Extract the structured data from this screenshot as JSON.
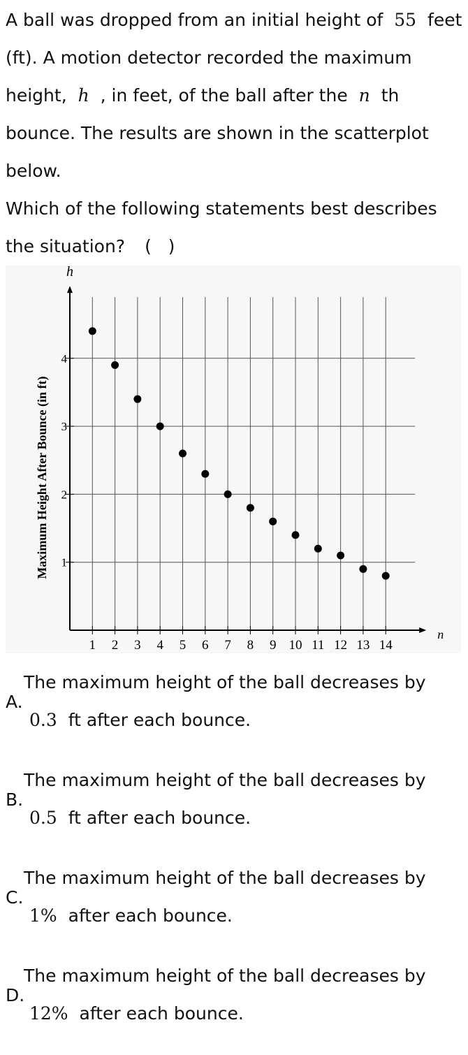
{
  "question": {
    "stem": [
      "A ball was dropped from an initial height of ",
      "55",
      " feet (ft). A motion detector recorded the maximum height, ",
      "h",
      " , in feet, of the ball after the ",
      "n",
      " th bounce. The results are shown in the scatterplot below."
    ],
    "prompt": "Which of the following statements best describes the situation?",
    "blank": "(   )"
  },
  "chart_data": {
    "type": "scatter",
    "x_label": "n",
    "y_label": "h",
    "y_title": "Maximum Height After Bounce (in ft)",
    "x": [
      1,
      2,
      3,
      4,
      5,
      6,
      7,
      8,
      9,
      10,
      11,
      12,
      13,
      14
    ],
    "values": [
      4.4,
      3.9,
      3.4,
      3.0,
      2.6,
      2.3,
      2.0,
      1.8,
      1.6,
      1.4,
      1.2,
      1.1,
      0.9,
      0.8
    ],
    "color": "#000000",
    "xlim": [
      0,
      15.3
    ],
    "ylim": [
      0,
      4.9
    ],
    "xticks": [
      1,
      2,
      3,
      4,
      5,
      6,
      7,
      8,
      9,
      10,
      11,
      12,
      13,
      14
    ],
    "yticks": [
      1,
      2,
      3,
      4
    ],
    "grid": true
  },
  "options": [
    {
      "label": "A.",
      "parts": [
        "The maximum height of the ball decreases by",
        "0.3",
        " ft after each bounce."
      ]
    },
    {
      "label": "B.",
      "parts": [
        "The maximum height of the ball decreases by",
        "0.5",
        " ft after each bounce."
      ]
    },
    {
      "label": "C.",
      "parts": [
        "The maximum height of the ball decreases by",
        "1%",
        " after each bounce."
      ]
    },
    {
      "label": "D.",
      "parts": [
        "The maximum height of the ball decreases by",
        "12%",
        " after each bounce."
      ]
    }
  ]
}
